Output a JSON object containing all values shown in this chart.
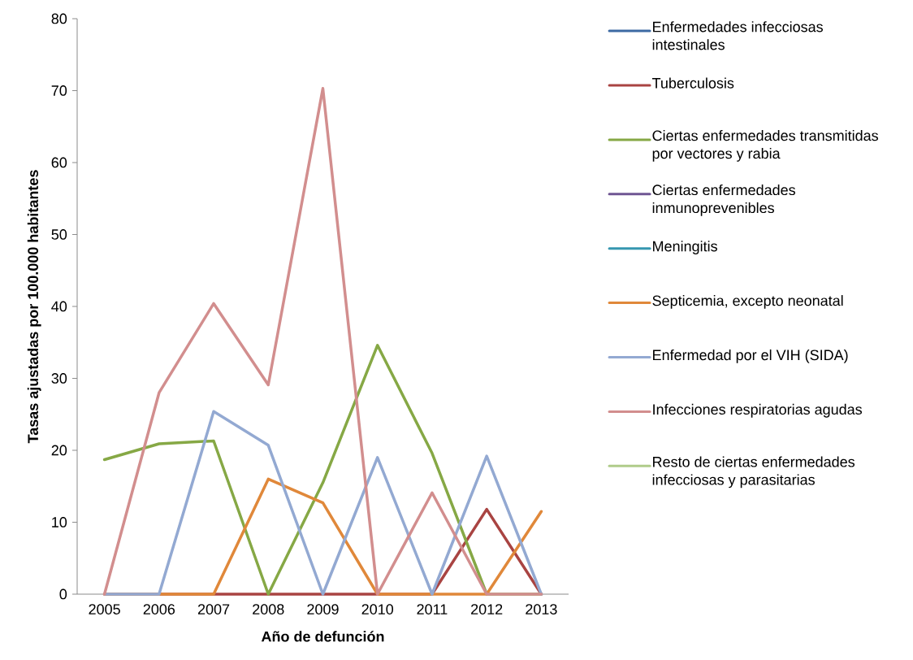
{
  "chart_data": {
    "type": "line",
    "xlabel": "Año de defunción",
    "ylabel": "Tasas ajustadas por 100.000 habitantes",
    "categories": [
      "2005",
      "2006",
      "2007",
      "2008",
      "2009",
      "2010",
      "2011",
      "2012",
      "2013"
    ],
    "ylim": [
      0,
      80
    ],
    "yticks": [
      0,
      10,
      20,
      30,
      40,
      50,
      60,
      70,
      80
    ],
    "grid": false,
    "legend": "right",
    "marker": "none",
    "line_style": "solid",
    "series": [
      {
        "name": "Enfermedades infecciosas intestinales",
        "color": "#3d6aa3",
        "values": [
          null,
          null,
          null,
          null,
          null,
          null,
          null,
          null,
          null
        ]
      },
      {
        "name": "Tuberculosis",
        "color": "#a94442",
        "values": [
          0,
          0,
          0,
          0,
          0,
          0,
          0,
          11.8,
          0
        ]
      },
      {
        "name": "Ciertas enfermedades transmitidas por vectores y rabia",
        "color": "#86a845",
        "values": [
          18.7,
          20.9,
          21.3,
          0,
          15.5,
          34.6,
          19.6,
          0,
          0
        ]
      },
      {
        "name": "Ciertas enfermedades inmunoprevenibles",
        "color": "#6f5693",
        "values": [
          null,
          null,
          null,
          null,
          null,
          null,
          null,
          null,
          null
        ]
      },
      {
        "name": "Meningitis",
        "color": "#3697b0",
        "values": [
          null,
          null,
          null,
          null,
          null,
          null,
          null,
          null,
          null
        ]
      },
      {
        "name": "Septicemia, excepto neonatal",
        "color": "#e0883a",
        "values": [
          0,
          0,
          0,
          16,
          12.7,
          0,
          0,
          0,
          11.5
        ]
      },
      {
        "name": "Enfermedad por el VIH (SIDA)",
        "color": "#93a9d2",
        "values": [
          0,
          0,
          25.4,
          20.7,
          0,
          19,
          0,
          19.2,
          0
        ]
      },
      {
        "name": "Infecciones respiratorias agudas",
        "color": "#d28e8e",
        "values": [
          0,
          28,
          40.4,
          29.1,
          70.3,
          0,
          14.1,
          0,
          0
        ]
      },
      {
        "name": "Resto de ciertas enfermedades infecciosas y parasitarias",
        "color": "#b0cc8a",
        "values": [
          null,
          null,
          null,
          null,
          null,
          null,
          null,
          null,
          null
        ]
      }
    ]
  }
}
